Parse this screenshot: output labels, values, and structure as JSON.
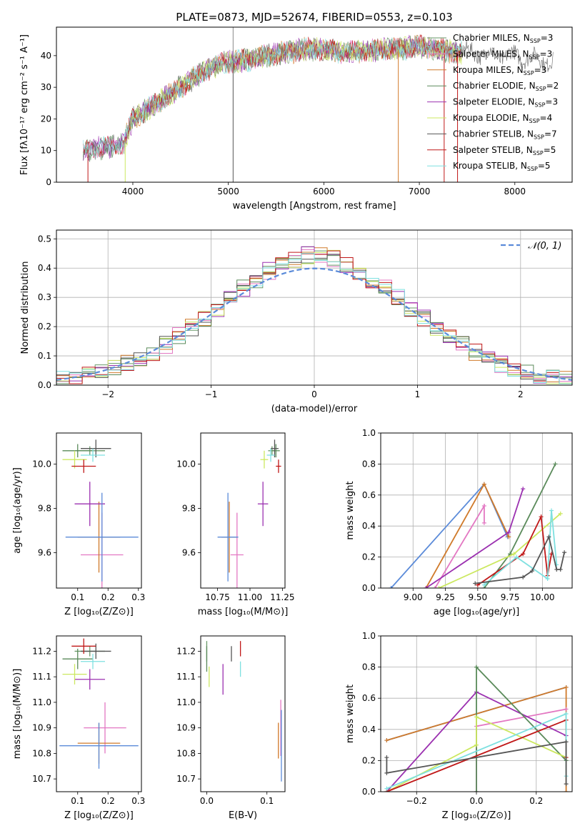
{
  "figure_title": "PLATE=0873, MJD=52674, FIBERID=0553, z=0.103",
  "model_colors": [
    "#6a9a6a",
    "#e377c2",
    "#d07a2a",
    "#5a8a5a",
    "#9b30b0",
    "#cce860",
    "#555555",
    "#c01818",
    "#7ee0e0"
  ],
  "chart_data": [
    {
      "id": "spectrum",
      "type": "line",
      "title": "PLATE=0873, MJD=52674, FIBERID=0553, z=0.103",
      "xlabel": "wavelength [Angstrom, rest frame]",
      "ylabel": "Flux [fλ10⁻¹⁷ erg cm⁻² s⁻¹ A⁻¹]",
      "xlim": [
        3200,
        8600
      ],
      "ylim": [
        0,
        49
      ],
      "xticks": [
        4000,
        5000,
        6000,
        7000,
        8000
      ],
      "yticks": [
        0,
        10,
        20,
        30,
        40
      ],
      "grid": false,
      "legend_loc": "upper right",
      "legend": [
        {
          "label": "Chabrier MILES, N",
          "sub": "SSP",
          "tail": "=3"
        },
        {
          "label": "Salpeter MILES, N",
          "sub": "SSP",
          "tail": "=3"
        },
        {
          "label": "Kroupa MILES, N",
          "sub": "SSP",
          "tail": "=3"
        },
        {
          "label": "Chabrier ELODIE, N",
          "sub": "SSP",
          "tail": "=2"
        },
        {
          "label": "Salpeter ELODIE, N",
          "sub": "SSP",
          "tail": "=3"
        },
        {
          "label": "Kroupa ELODIE, N",
          "sub": "SSP",
          "tail": "=4"
        },
        {
          "label": "Chabrier STELIB, N",
          "sub": "SSP",
          "tail": "=7"
        },
        {
          "label": "Salpeter STELIB, N",
          "sub": "SSP",
          "tail": "=5"
        },
        {
          "label": "Kroupa STELIB, N",
          "sub": "SSP",
          "tail": "=5"
        }
      ],
      "continuum": {
        "x": [
          3480,
          3700,
          3900,
          4000,
          4200,
          4400,
          4600,
          4800,
          5000,
          5200,
          5400,
          5600,
          5800,
          6000,
          6200,
          6400,
          6600,
          6800,
          7000,
          7200,
          7400,
          7600,
          7800,
          8000,
          8200,
          8400
        ],
        "y": [
          10,
          11,
          12,
          20,
          24,
          28,
          32,
          36,
          38,
          38.5,
          40,
          41,
          42,
          42,
          41,
          41.5,
          42,
          42,
          43,
          42,
          41,
          41,
          40,
          40,
          39,
          38
        ]
      },
      "spikes_x": [
        3530,
        3920,
        5050,
        6780,
        7260,
        7400
      ]
    },
    {
      "id": "residuals",
      "type": "step",
      "xlabel": "(data-model)/error",
      "ylabel": "Normed distribution",
      "xlim": [
        -2.5,
        2.5
      ],
      "ylim": [
        0,
        0.53
      ],
      "xticks": [
        -2,
        -1,
        0,
        1,
        2
      ],
      "yticks": [
        0.0,
        0.1,
        0.2,
        0.3,
        0.4,
        0.5
      ],
      "grid": true,
      "bin_edges_range": [
        -2.5,
        2.5
      ],
      "bins": 40,
      "reference": {
        "label": "𝒩(0, 1)",
        "mean": 0,
        "sigma": 1
      }
    },
    {
      "id": "age-vs-Z",
      "type": "errorbar",
      "xlabel": "Z [log₁₀(Z/Z⊙)]",
      "ylabel": "age  [log₁₀(age/yr)]",
      "xlim": [
        0.03,
        0.31
      ],
      "ylim": [
        9.44,
        10.14
      ],
      "xticks": [
        0.1,
        0.2,
        0.3
      ],
      "yticks": [
        9.6,
        9.8,
        10.0
      ],
      "grid": false,
      "points": [
        {
          "x": 0.14,
          "y": 10.06,
          "xerr": 0.05,
          "yerr": 0.02,
          "c": 0
        },
        {
          "x": 0.18,
          "y": 9.59,
          "xerr": 0.07,
          "yerr": 0.19,
          "c": 1
        },
        {
          "x": 0.17,
          "y": 9.67,
          "xerr": 0.07,
          "yerr": 0.16,
          "c": 2
        },
        {
          "x": 0.1,
          "y": 10.06,
          "xerr": 0.05,
          "yerr": 0.03,
          "c": 3
        },
        {
          "x": 0.14,
          "y": 9.82,
          "xerr": 0.05,
          "yerr": 0.1,
          "c": 4
        },
        {
          "x": 0.09,
          "y": 10.02,
          "xerr": 0.04,
          "yerr": 0.04,
          "c": 5
        },
        {
          "x": 0.16,
          "y": 10.07,
          "xerr": 0.05,
          "yerr": 0.04,
          "c": 6
        },
        {
          "x": 0.12,
          "y": 9.99,
          "xerr": 0.04,
          "yerr": 0.03,
          "c": 7
        },
        {
          "x": 0.15,
          "y": 10.04,
          "xerr": 0.04,
          "yerr": 0.03,
          "c": 8
        },
        {
          "x": 0.18,
          "y": 9.67,
          "xerr": 0.12,
          "yerr": 0.2,
          "c": "blue"
        }
      ]
    },
    {
      "id": "age-vs-mass",
      "type": "errorbar",
      "xlabel": "mass [log₁₀(M/M⊙)]",
      "ylabel": "",
      "xlim": [
        10.62,
        11.27
      ],
      "ylim": [
        9.44,
        10.14
      ],
      "xticks": [
        10.75,
        11.0,
        11.25
      ],
      "yticks": [
        9.6,
        9.8,
        10.0
      ],
      "grid": false,
      "points": [
        {
          "x": 11.17,
          "y": 10.06,
          "xerr": 0.03,
          "yerr": 0.02,
          "c": 0
        },
        {
          "x": 10.9,
          "y": 9.59,
          "xerr": 0.05,
          "yerr": 0.19,
          "c": 1
        },
        {
          "x": 10.84,
          "y": 9.67,
          "xerr": 0.06,
          "yerr": 0.16,
          "c": 2
        },
        {
          "x": 11.2,
          "y": 10.06,
          "xerr": 0.03,
          "yerr": 0.03,
          "c": 3
        },
        {
          "x": 11.1,
          "y": 9.82,
          "xerr": 0.04,
          "yerr": 0.1,
          "c": 4
        },
        {
          "x": 11.11,
          "y": 10.02,
          "xerr": 0.03,
          "yerr": 0.04,
          "c": 5
        },
        {
          "x": 11.19,
          "y": 10.07,
          "xerr": 0.03,
          "yerr": 0.04,
          "c": 6
        },
        {
          "x": 11.22,
          "y": 9.99,
          "xerr": 0.02,
          "yerr": 0.03,
          "c": 7
        },
        {
          "x": 11.16,
          "y": 10.04,
          "xerr": 0.03,
          "yerr": 0.03,
          "c": 8
        },
        {
          "x": 10.83,
          "y": 9.67,
          "xerr": 0.08,
          "yerr": 0.2,
          "c": "blue"
        }
      ]
    },
    {
      "id": "mass-weight-vs-age",
      "type": "line",
      "xlabel": "age  [log₁₀(age/yr)]",
      "ylabel": "mass weight",
      "xlim": [
        8.75,
        10.23
      ],
      "ylim": [
        0,
        1.0
      ],
      "xticks": [
        9.0,
        9.25,
        9.5,
        9.75,
        10.0
      ],
      "yticks": [
        0.0,
        0.2,
        0.4,
        0.6,
        0.8,
        1.0
      ],
      "grid": true,
      "series": [
        {
          "c": "blue",
          "x": [
            8.83,
            9.55,
            9.73
          ],
          "y": [
            0.0,
            0.67,
            0.33
          ]
        },
        {
          "c": 2,
          "x": [
            9.1,
            9.55,
            9.74
          ],
          "y": [
            0.0,
            0.67,
            0.33
          ]
        },
        {
          "c": 1,
          "x": [
            9.17,
            9.55,
            9.55
          ],
          "y": [
            0.0,
            0.53,
            0.42
          ]
        },
        {
          "c": 4,
          "x": [
            9.1,
            9.74,
            9.85
          ],
          "y": [
            0.0,
            0.36,
            0.64
          ]
        },
        {
          "c": 3,
          "x": [
            9.55,
            9.75,
            10.1
          ],
          "y": [
            0.0,
            0.22,
            0.8
          ]
        },
        {
          "c": 5,
          "x": [
            9.2,
            9.78,
            10.14
          ],
          "y": [
            0.0,
            0.22,
            0.48
          ]
        },
        {
          "c": 7,
          "x": [
            9.5,
            9.85,
            9.99,
            10.04,
            10.07
          ],
          "y": [
            0.02,
            0.22,
            0.46,
            0.08,
            0.22
          ]
        },
        {
          "c": 8,
          "x": [
            9.55,
            9.8,
            10.04,
            10.07,
            10.11
          ],
          "y": [
            0.02,
            0.2,
            0.06,
            0.5,
            0.15
          ]
        },
        {
          "c": 6,
          "x": [
            9.48,
            9.85,
            9.92,
            10.05,
            10.11,
            10.14,
            10.17
          ],
          "y": [
            0.03,
            0.07,
            0.11,
            0.33,
            0.12,
            0.12,
            0.23
          ]
        }
      ]
    },
    {
      "id": "mass-vs-Z",
      "type": "errorbar",
      "xlabel": "Z [log₁₀(Z/Z⊙)]",
      "ylabel": "mass [log₁₀(M/M⊙)]",
      "xlim": [
        0.03,
        0.31
      ],
      "ylim": [
        10.65,
        11.26
      ],
      "xticks": [
        0.1,
        0.2,
        0.3
      ],
      "yticks": [
        10.7,
        10.8,
        10.9,
        11.0,
        11.1,
        11.2
      ],
      "grid": false,
      "points": [
        {
          "x": 0.14,
          "y": 11.2,
          "xerr": 0.05,
          "yerr": 0.02,
          "c": 0
        },
        {
          "x": 0.19,
          "y": 10.9,
          "xerr": 0.07,
          "yerr": 0.1,
          "c": 1
        },
        {
          "x": 0.17,
          "y": 10.84,
          "xerr": 0.07,
          "yerr": 0.08,
          "c": 2
        },
        {
          "x": 0.1,
          "y": 11.17,
          "xerr": 0.05,
          "yerr": 0.04,
          "c": 3
        },
        {
          "x": 0.14,
          "y": 11.09,
          "xerr": 0.05,
          "yerr": 0.04,
          "c": 4
        },
        {
          "x": 0.09,
          "y": 11.11,
          "xerr": 0.04,
          "yerr": 0.04,
          "c": 5
        },
        {
          "x": 0.16,
          "y": 11.2,
          "xerr": 0.05,
          "yerr": 0.03,
          "c": 6
        },
        {
          "x": 0.12,
          "y": 11.22,
          "xerr": 0.04,
          "yerr": 0.03,
          "c": 7
        },
        {
          "x": 0.15,
          "y": 11.16,
          "xerr": 0.04,
          "yerr": 0.03,
          "c": 8
        },
        {
          "x": 0.17,
          "y": 10.83,
          "xerr": 0.13,
          "yerr": 0.09,
          "c": "blue"
        }
      ]
    },
    {
      "id": "mass-vs-EBV",
      "type": "errorbar",
      "xlabel": "E(B-V)",
      "ylabel": "",
      "xlim": [
        -0.01,
        0.13
      ],
      "ylim": [
        10.65,
        11.26
      ],
      "xticks": [
        0.0,
        0.1
      ],
      "yticks": [
        10.7,
        10.8,
        10.9,
        11.0,
        11.1,
        11.2
      ],
      "grid": false,
      "points": [
        {
          "x": 0.0,
          "y": 11.2,
          "xerr": 0,
          "yerr": 0.04,
          "c": 0
        },
        {
          "x": 0.123,
          "y": 10.9,
          "xerr": 0,
          "yerr": 0.11,
          "c": 1
        },
        {
          "x": 0.119,
          "y": 10.85,
          "xerr": 0,
          "yerr": 0.07,
          "c": 2
        },
        {
          "x": 0.0,
          "y": 11.17,
          "xerr": 0,
          "yerr": 0.05,
          "c": 3
        },
        {
          "x": 0.027,
          "y": 11.09,
          "xerr": 0,
          "yerr": 0.06,
          "c": 4
        },
        {
          "x": 0.004,
          "y": 11.1,
          "xerr": 0,
          "yerr": 0.04,
          "c": 5
        },
        {
          "x": 0.041,
          "y": 11.19,
          "xerr": 0,
          "yerr": 0.03,
          "c": 6
        },
        {
          "x": 0.056,
          "y": 11.21,
          "xerr": 0,
          "yerr": 0.03,
          "c": 7
        },
        {
          "x": 0.056,
          "y": 11.13,
          "xerr": 0,
          "yerr": 0.03,
          "c": 8
        },
        {
          "x": 0.124,
          "y": 10.83,
          "xerr": 0,
          "yerr": 0.14,
          "c": "blue"
        }
      ]
    },
    {
      "id": "mass-weight-vs-Z",
      "type": "line",
      "xlabel": "Z [log₁₀(Z/Z⊙)]",
      "ylabel": "mass weight",
      "xlim": [
        -0.32,
        0.32
      ],
      "ylim": [
        0,
        1.0
      ],
      "xticks": [
        -0.2,
        0.0,
        0.2
      ],
      "yticks": [
        0.0,
        0.2,
        0.4,
        0.6,
        0.8,
        1.0
      ],
      "grid": true,
      "series": [
        {
          "c": "blue",
          "x": [
            -0.3,
            0.3
          ],
          "y": [
            0.33,
            0.67
          ]
        },
        {
          "c": 2,
          "x": [
            -0.3,
            0.3,
            0.3
          ],
          "y": [
            0.33,
            0.67,
            0.0
          ]
        },
        {
          "c": 1,
          "x": [
            0.0,
            0.0,
            0.3
          ],
          "y": [
            0.0,
            0.42,
            0.53
          ]
        },
        {
          "c": 4,
          "x": [
            -0.3,
            0.0,
            0.3
          ],
          "y": [
            0.0,
            0.64,
            0.36
          ]
        },
        {
          "c": 3,
          "x": [
            0.0,
            0.0,
            0.3
          ],
          "y": [
            0.0,
            0.8,
            0.2
          ]
        },
        {
          "c": 5,
          "x": [
            -0.3,
            0.0,
            0.0,
            0.3
          ],
          "y": [
            0.0,
            0.3,
            0.48,
            0.22
          ]
        },
        {
          "c": 7,
          "x": [
            -0.3,
            0.3,
            0.3
          ],
          "y": [
            0.0,
            0.46,
            0.22
          ]
        },
        {
          "c": 8,
          "x": [
            -0.3,
            0.3,
            0.3
          ],
          "y": [
            0.02,
            0.5,
            0.1
          ]
        },
        {
          "c": 6,
          "x": [
            -0.3,
            -0.3,
            0.3,
            0.3
          ],
          "y": [
            0.22,
            0.12,
            0.32,
            0.05
          ]
        }
      ]
    }
  ]
}
